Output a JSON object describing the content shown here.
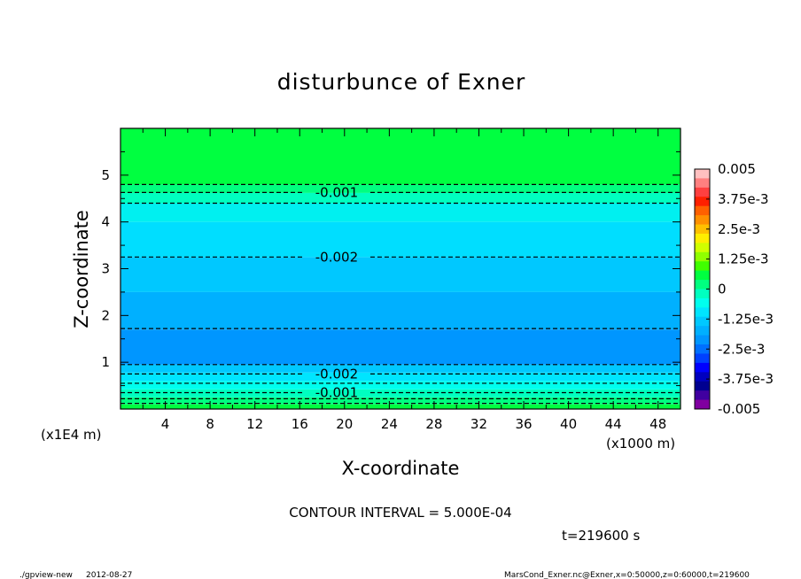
{
  "chart_data": {
    "type": "heatmap",
    "title": "disturbunce of Exner",
    "xlabel": "X-coordinate",
    "ylabel": "Z-coordinate",
    "x_unit": "(x1000 m)",
    "y_unit": "(x1E4 m)",
    "xlim": [
      0,
      50
    ],
    "ylim": [
      0,
      6
    ],
    "x_ticks": [
      4,
      8,
      12,
      16,
      20,
      24,
      28,
      32,
      36,
      40,
      44,
      48
    ],
    "y_ticks": [
      1,
      2,
      3,
      4,
      5
    ],
    "bands": [
      {
        "z0": 0.0,
        "z1": 0.1,
        "color": "#00ff40"
      },
      {
        "z0": 0.1,
        "z1": 0.25,
        "color": "#00ff80"
      },
      {
        "z0": 0.25,
        "z1": 0.42,
        "color": "#00ffc0"
      },
      {
        "z0": 0.42,
        "z1": 0.6,
        "color": "#00ffee"
      },
      {
        "z0": 0.6,
        "z1": 0.78,
        "color": "#00e5ff"
      },
      {
        "z0": 0.78,
        "z1": 0.95,
        "color": "#00c8ff"
      },
      {
        "z0": 0.95,
        "z1": 1.7,
        "color": "#0096ff"
      },
      {
        "z0": 1.7,
        "z1": 2.5,
        "color": "#00b0ff"
      },
      {
        "z0": 2.5,
        "z1": 3.25,
        "color": "#00c8ff"
      },
      {
        "z0": 3.25,
        "z1": 4.0,
        "color": "#00deff"
      },
      {
        "z0": 4.0,
        "z1": 4.4,
        "color": "#00f0f0"
      },
      {
        "z0": 4.4,
        "z1": 4.62,
        "color": "#00ffc0"
      },
      {
        "z0": 4.62,
        "z1": 4.8,
        "color": "#00ff80"
      },
      {
        "z0": 4.8,
        "z1": 6.0,
        "color": "#00ff40"
      }
    ],
    "contours": [
      {
        "z": 0.12,
        "label": ""
      },
      {
        "z": 0.22,
        "label": ""
      },
      {
        "z": 0.35,
        "label": "-0.001"
      },
      {
        "z": 0.55,
        "label": ""
      },
      {
        "z": 0.75,
        "label": "-0.002"
      },
      {
        "z": 0.95,
        "label": ""
      },
      {
        "z": 1.72,
        "label": ""
      },
      {
        "z": 3.25,
        "label": "-0.002"
      },
      {
        "z": 4.4,
        "label": ""
      },
      {
        "z": 4.63,
        "label": "-0.001"
      },
      {
        "z": 4.8,
        "label": ""
      }
    ],
    "colorbar": {
      "range": [
        -0.005,
        0.005
      ],
      "labels": [
        "0.005",
        "3.75e-3",
        "2.5e-3",
        "1.25e-3",
        "0",
        "-1.25e-3",
        "-2.5e-3",
        "-3.75e-3",
        "-0.005"
      ],
      "colors": [
        "#ffc0c0",
        "#ff8080",
        "#ff4040",
        "#ff2000",
        "#ff6000",
        "#ff9000",
        "#ffc000",
        "#ffee00",
        "#d0ff00",
        "#90ff00",
        "#40ff00",
        "#00ff40",
        "#00ff80",
        "#00ffc0",
        "#00ffee",
        "#00e5ff",
        "#00c8ff",
        "#00b0ff",
        "#0096ff",
        "#0070ff",
        "#0040ff",
        "#0000ff",
        "#0000c0",
        "#000090",
        "#4000a0",
        "#8000a0"
      ]
    }
  },
  "footer": {
    "contour_interval": "CONTOUR INTERVAL = 5.000E-04",
    "time": "t=219600 s",
    "program": "./gpview-new",
    "date": "2012-08-27",
    "source": "MarsCond_Exner.nc@Exner,x=0:50000,z=0:60000,t=219600"
  }
}
